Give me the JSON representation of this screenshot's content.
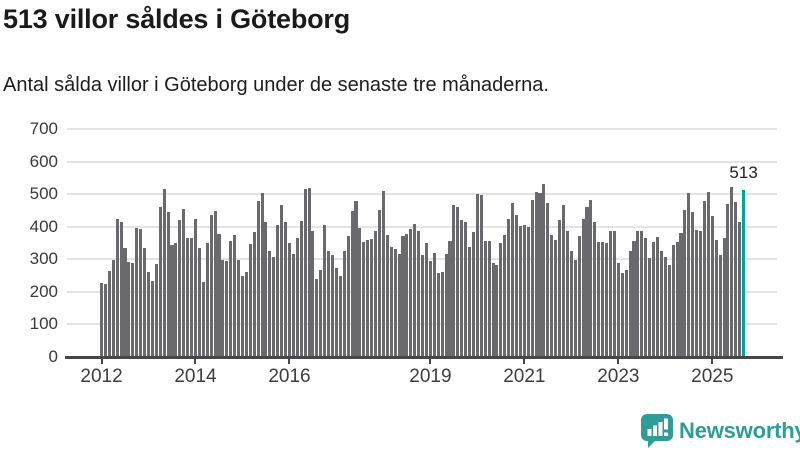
{
  "header": {
    "title": "513 villor såldes i Göteborg",
    "subtitle": "Antal sålda villor i Göteborg under de senaste tre månaderna."
  },
  "chart_data": {
    "type": "bar",
    "title": "513 villor såldes i Göteborg",
    "subtitle": "Antal sålda villor i Göteborg under de senaste tre månaderna.",
    "xlabel": "",
    "ylabel": "",
    "ylim": [
      0,
      700
    ],
    "grid": true,
    "y_ticks": [
      0,
      100,
      200,
      300,
      400,
      500,
      600,
      700
    ],
    "x_ticks": [
      {
        "label": "2012",
        "month_index": 0
      },
      {
        "label": "2014",
        "month_index": 24
      },
      {
        "label": "2016",
        "month_index": 48
      },
      {
        "label": "2019",
        "month_index": 84
      },
      {
        "label": "2021",
        "month_index": 108
      },
      {
        "label": "2023",
        "month_index": 132
      },
      {
        "label": "2025",
        "month_index": 156
      }
    ],
    "values": [
      228,
      225,
      265,
      297,
      423,
      413,
      336,
      291,
      289,
      396,
      394,
      336,
      262,
      234,
      286,
      460,
      516,
      444,
      345,
      349,
      422,
      455,
      366,
      364,
      424,
      334,
      230,
      350,
      435,
      449,
      378,
      299,
      294,
      357,
      375,
      297,
      248,
      261,
      347,
      384,
      480,
      503,
      416,
      324,
      306,
      404,
      467,
      416,
      350,
      316,
      365,
      418,
      517,
      519,
      388,
      240,
      268,
      404,
      326,
      314,
      273,
      248,
      324,
      370,
      449,
      480,
      396,
      353,
      360,
      362,
      386,
      452,
      510,
      375,
      337,
      332,
      316,
      370,
      377,
      394,
      408,
      388,
      314,
      350,
      296,
      319,
      258,
      261,
      316,
      357,
      467,
      459,
      421,
      414,
      337,
      384,
      500,
      498,
      355,
      357,
      288,
      283,
      350,
      375,
      424,
      473,
      435,
      401,
      406,
      398,
      483,
      506,
      503,
      531,
      473,
      375,
      360,
      421,
      467,
      388,
      326,
      299,
      373,
      424,
      459,
      483,
      416,
      353,
      353,
      350,
      388,
      386,
      288,
      258,
      268,
      324,
      355,
      388,
      386,
      365,
      304,
      353,
      367,
      324,
      306,
      283,
      343,
      353,
      381,
      452,
      503,
      445,
      391,
      388,
      480,
      506,
      432,
      360,
      314,
      365,
      470,
      521,
      476,
      416,
      513
    ],
    "highlight_index": 164,
    "highlight_label": "513",
    "bar_color": "#6a6a6e",
    "highlight_color": "#00a3a3",
    "legend": "none"
  },
  "footer": {
    "brand": "Newsworthy",
    "brand_color": "#2f9c96"
  }
}
